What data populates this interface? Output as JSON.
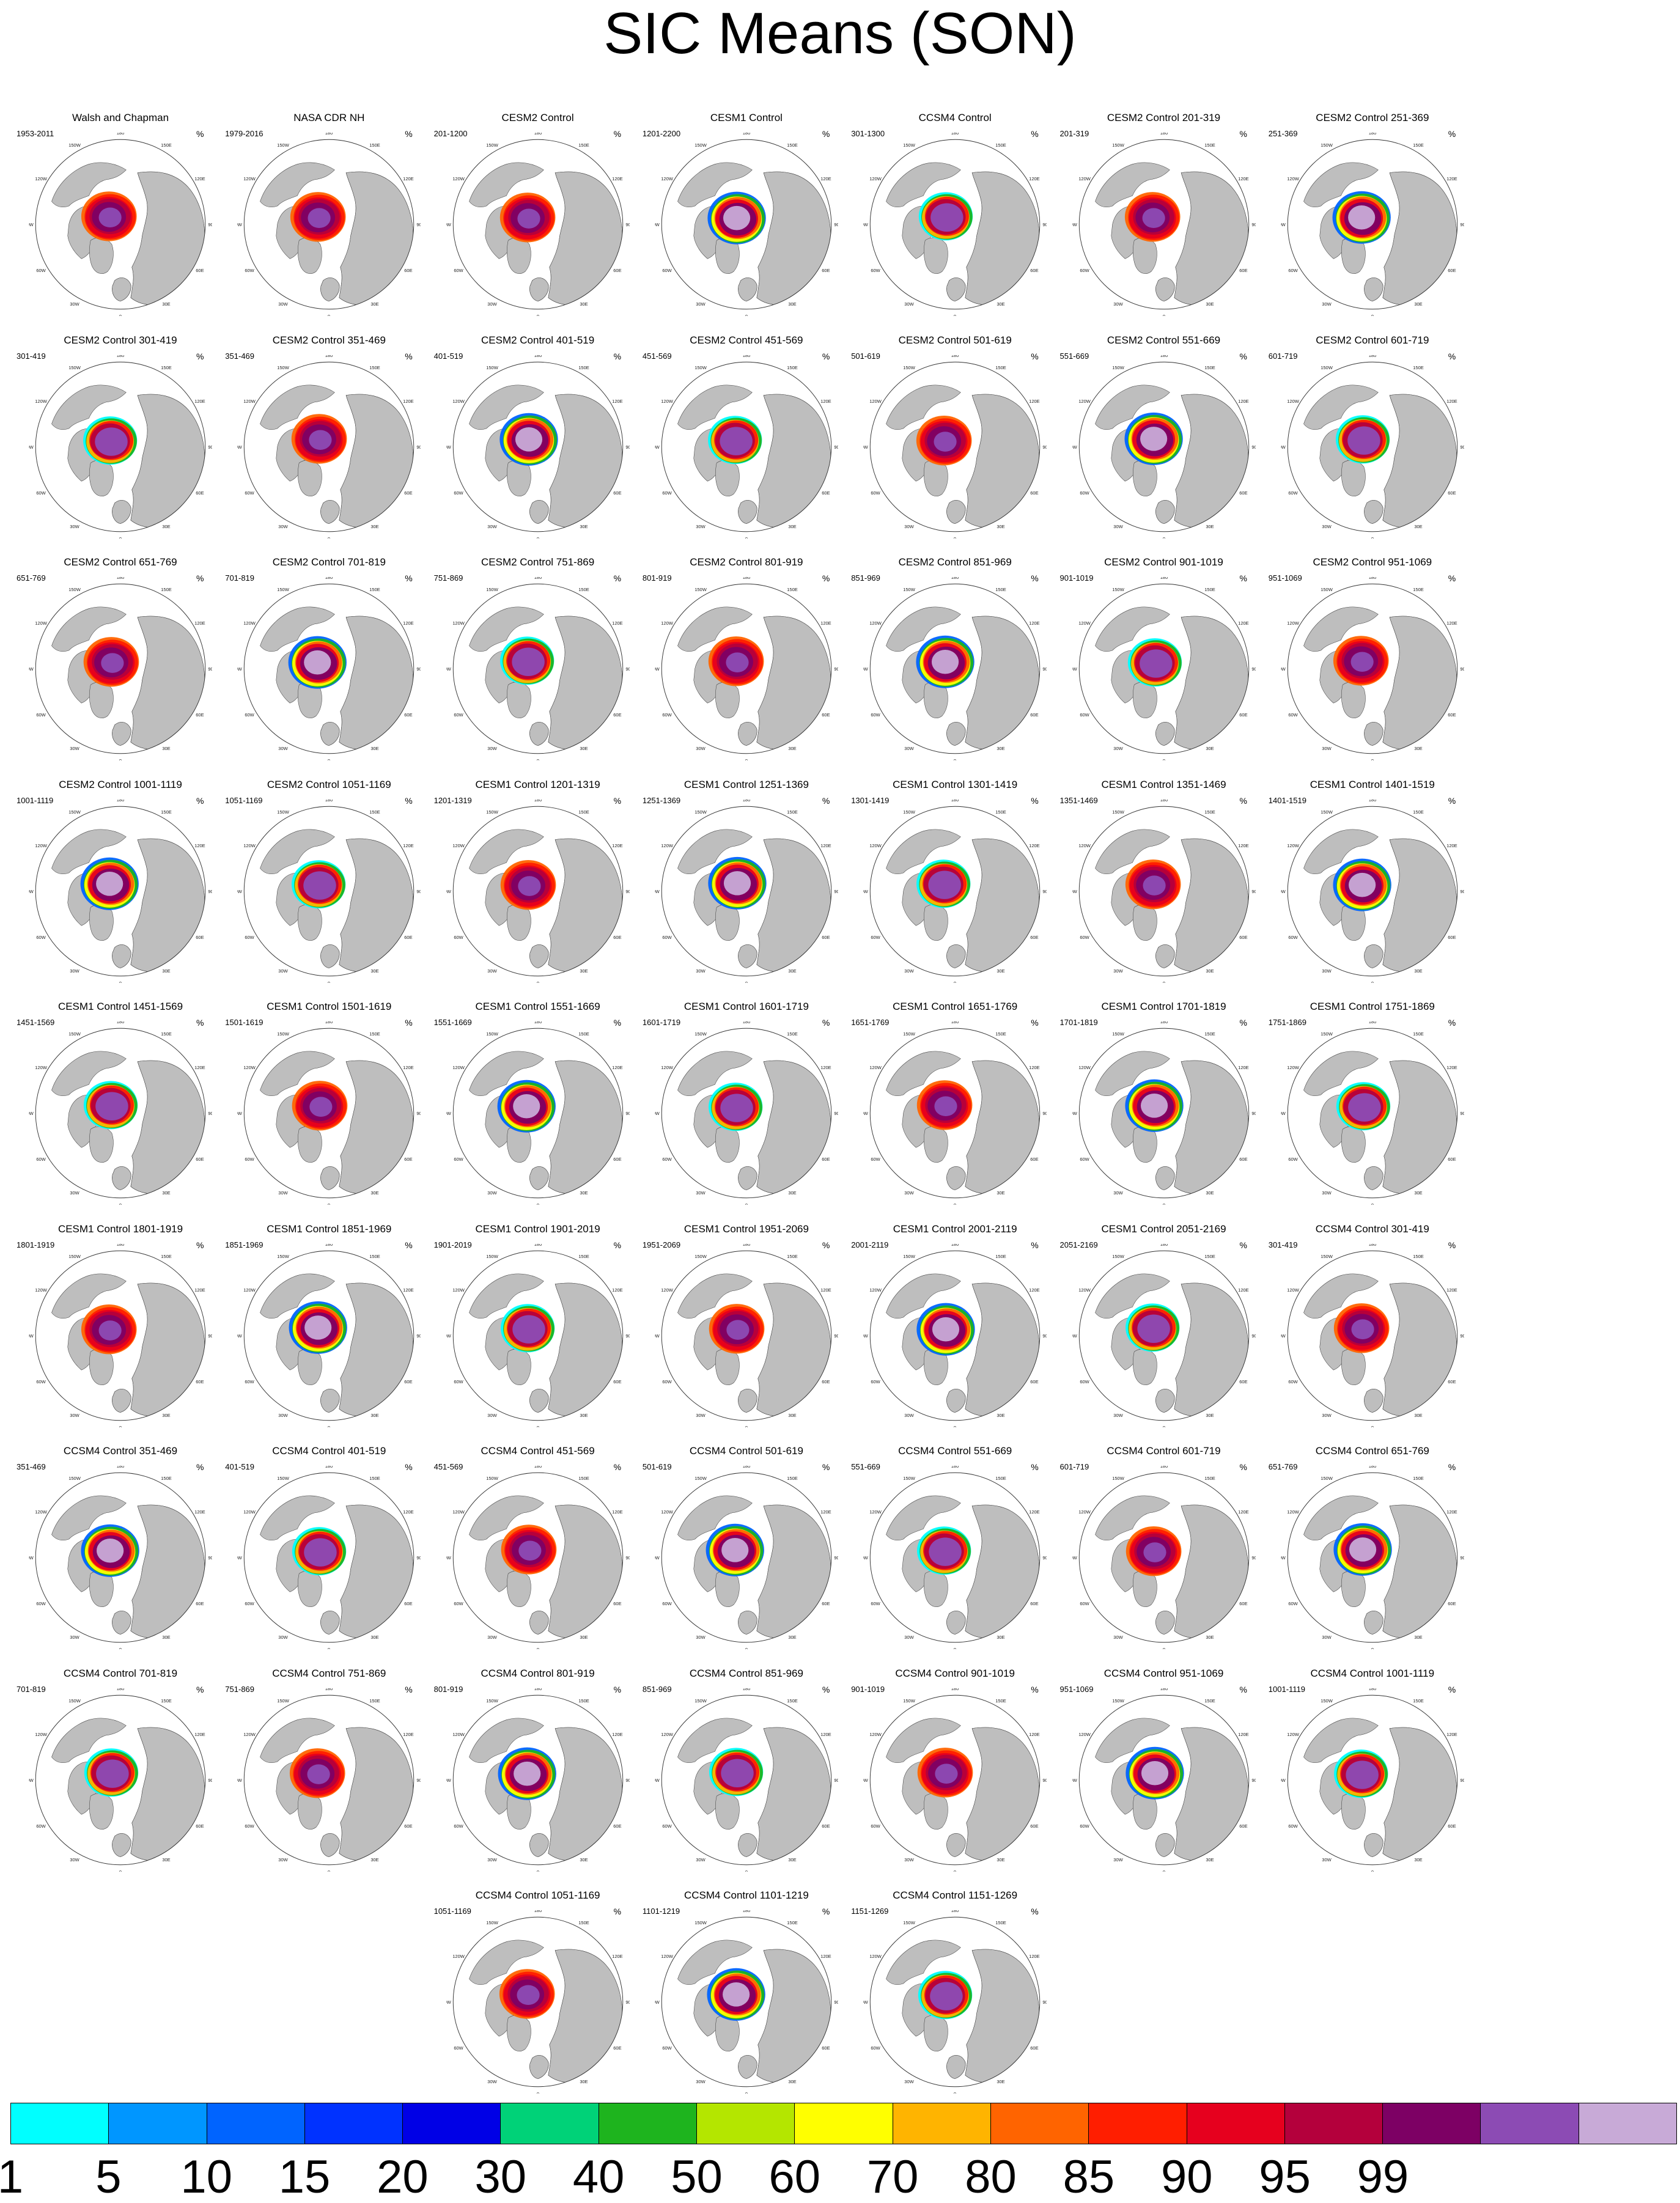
{
  "chart_data": {
    "type": "heatmap",
    "title": "SIC Means (SON)",
    "projection": "north polar stereographic",
    "units": "%",
    "map_lon_labels": [
      "180",
      "150E",
      "120E",
      "90E",
      "60E",
      "30E",
      "0",
      "30W",
      "60W",
      "90W",
      "120W",
      "150W"
    ],
    "panels": [
      {
        "title": "Walsh and Chapman",
        "subtitle": "1953-2011"
      },
      {
        "title": "NASA CDR NH",
        "subtitle": "1979-2016"
      },
      {
        "title": "CESM2 Control",
        "subtitle": "201-1200"
      },
      {
        "title": "CESM1 Control",
        "subtitle": "1201-2200"
      },
      {
        "title": "CCSM4 Control",
        "subtitle": "301-1300"
      },
      {
        "title": "CESM2 Control 201-319",
        "subtitle": "201-319"
      },
      {
        "title": "CESM2 Control 251-369",
        "subtitle": "251-369"
      },
      {
        "title": "CESM2 Control 301-419",
        "subtitle": "301-419"
      },
      {
        "title": "CESM2 Control 351-469",
        "subtitle": "351-469"
      },
      {
        "title": "CESM2 Control 401-519",
        "subtitle": "401-519"
      },
      {
        "title": "CESM2 Control 451-569",
        "subtitle": "451-569"
      },
      {
        "title": "CESM2 Control 501-619",
        "subtitle": "501-619"
      },
      {
        "title": "CESM2 Control 551-669",
        "subtitle": "551-669"
      },
      {
        "title": "CESM2 Control 601-719",
        "subtitle": "601-719"
      },
      {
        "title": "CESM2 Control 651-769",
        "subtitle": "651-769"
      },
      {
        "title": "CESM2 Control 701-819",
        "subtitle": "701-819"
      },
      {
        "title": "CESM2 Control 751-869",
        "subtitle": "751-869"
      },
      {
        "title": "CESM2 Control 801-919",
        "subtitle": "801-919"
      },
      {
        "title": "CESM2 Control 851-969",
        "subtitle": "851-969"
      },
      {
        "title": "CESM2 Control 901-1019",
        "subtitle": "901-1019"
      },
      {
        "title": "CESM2 Control 951-1069",
        "subtitle": "951-1069"
      },
      {
        "title": "CESM2 Control 1001-1119",
        "subtitle": "1001-1119"
      },
      {
        "title": "CESM2 Control 1051-1169",
        "subtitle": "1051-1169"
      },
      {
        "title": "CESM1 Control 1201-1319",
        "subtitle": "1201-1319"
      },
      {
        "title": "CESM1 Control 1251-1369",
        "subtitle": "1251-1369"
      },
      {
        "title": "CESM1 Control 1301-1419",
        "subtitle": "1301-1419"
      },
      {
        "title": "CESM1 Control 1351-1469",
        "subtitle": "1351-1469"
      },
      {
        "title": "CESM1 Control 1401-1519",
        "subtitle": "1401-1519"
      },
      {
        "title": "CESM1 Control 1451-1569",
        "subtitle": "1451-1569"
      },
      {
        "title": "CESM1 Control 1501-1619",
        "subtitle": "1501-1619"
      },
      {
        "title": "CESM1 Control 1551-1669",
        "subtitle": "1551-1669"
      },
      {
        "title": "CESM1 Control 1601-1719",
        "subtitle": "1601-1719"
      },
      {
        "title": "CESM1 Control 1651-1769",
        "subtitle": "1651-1769"
      },
      {
        "title": "CESM1 Control 1701-1819",
        "subtitle": "1701-1819"
      },
      {
        "title": "CESM1 Control 1751-1869",
        "subtitle": "1751-1869"
      },
      {
        "title": "CESM1 Control 1801-1919",
        "subtitle": "1801-1919"
      },
      {
        "title": "CESM1 Control 1851-1969",
        "subtitle": "1851-1969"
      },
      {
        "title": "CESM1 Control 1901-2019",
        "subtitle": "1901-2019"
      },
      {
        "title": "CESM1 Control 1951-2069",
        "subtitle": "1951-2069"
      },
      {
        "title": "CESM1 Control 2001-2119",
        "subtitle": "2001-2119"
      },
      {
        "title": "CESM1 Control 2051-2169",
        "subtitle": "2051-2169"
      },
      {
        "title": "CCSM4 Control 301-419",
        "subtitle": "301-419"
      },
      {
        "title": "CCSM4 Control 351-469",
        "subtitle": "351-469"
      },
      {
        "title": "CCSM4 Control 401-519",
        "subtitle": "401-519"
      },
      {
        "title": "CCSM4 Control 451-569",
        "subtitle": "451-569"
      },
      {
        "title": "CCSM4 Control 501-619",
        "subtitle": "501-619"
      },
      {
        "title": "CCSM4 Control 551-669",
        "subtitle": "551-669"
      },
      {
        "title": "CCSM4 Control 601-719",
        "subtitle": "601-719"
      },
      {
        "title": "CCSM4 Control 651-769",
        "subtitle": "651-769"
      },
      {
        "title": "CCSM4 Control 701-819",
        "subtitle": "701-819"
      },
      {
        "title": "CCSM4 Control 751-869",
        "subtitle": "751-869"
      },
      {
        "title": "CCSM4 Control 801-919",
        "subtitle": "801-919"
      },
      {
        "title": "CCSM4 Control 851-969",
        "subtitle": "851-969"
      },
      {
        "title": "CCSM4 Control 901-1019",
        "subtitle": "901-1019"
      },
      {
        "title": "CCSM4 Control 951-1069",
        "subtitle": "951-1069"
      },
      {
        "title": "CCSM4 Control 1001-1119",
        "subtitle": "1001-1119"
      },
      {
        "title": "CCSM4 Control 1051-1169",
        "subtitle": "1051-1169"
      },
      {
        "title": "CCSM4 Control 1101-1219",
        "subtitle": "1101-1219"
      },
      {
        "title": "CCSM4 Control 1151-1269",
        "subtitle": "1151-1269"
      }
    ],
    "colorbar": {
      "levels": [
        "1",
        "5",
        "10",
        "15",
        "20",
        "30",
        "40",
        "50",
        "60",
        "70",
        "80",
        "85",
        "90",
        "95",
        "99"
      ],
      "colors": [
        "#00ffff",
        "#0096ff",
        "#0064ff",
        "#0032ff",
        "#0000e6",
        "#00d278",
        "#1eb41e",
        "#b4e600",
        "#ffff00",
        "#ffb400",
        "#ff6400",
        "#ff1e00",
        "#e6001e",
        "#b4003c",
        "#7d0064",
        "#8c4bb4",
        "#c8aad7"
      ]
    }
  }
}
